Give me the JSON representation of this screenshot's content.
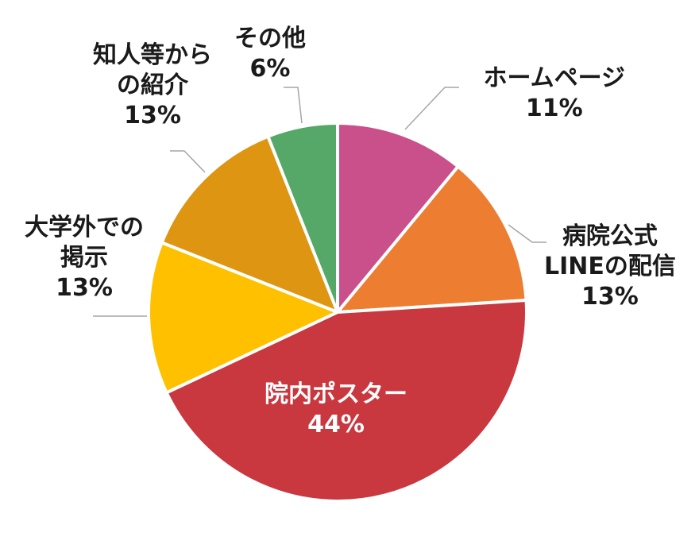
{
  "chart_data": {
    "type": "pie",
    "start_angle_deg": 0,
    "direction": "clockwise",
    "slices": [
      {
        "label": "ホームページ",
        "label_lines": [
          "ホームページ"
        ],
        "value": 11,
        "display": "11%",
        "color": "#c9508a"
      },
      {
        "label": "病院公式LINEの配信",
        "label_lines": [
          "病院公式",
          "LINEの配信"
        ],
        "value": 13,
        "display": "13%",
        "color": "#ed7d31"
      },
      {
        "label": "院内ポスター",
        "label_lines": [
          "院内ポスター"
        ],
        "value": 44,
        "display": "44%",
        "color": "#c9373f"
      },
      {
        "label": "大学外での掲示",
        "label_lines": [
          "大学外での",
          "掲示"
        ],
        "value": 13,
        "display": "13%",
        "color": "#ffc000"
      },
      {
        "label": "知人等からの紹介",
        "label_lines": [
          "知人等から",
          "の紹介"
        ],
        "value": 13,
        "display": "13%",
        "color": "#dd9512"
      },
      {
        "label": "その他",
        "label_lines": [
          "その他"
        ],
        "value": 6,
        "display": "6%",
        "color": "#55a868"
      }
    ]
  }
}
